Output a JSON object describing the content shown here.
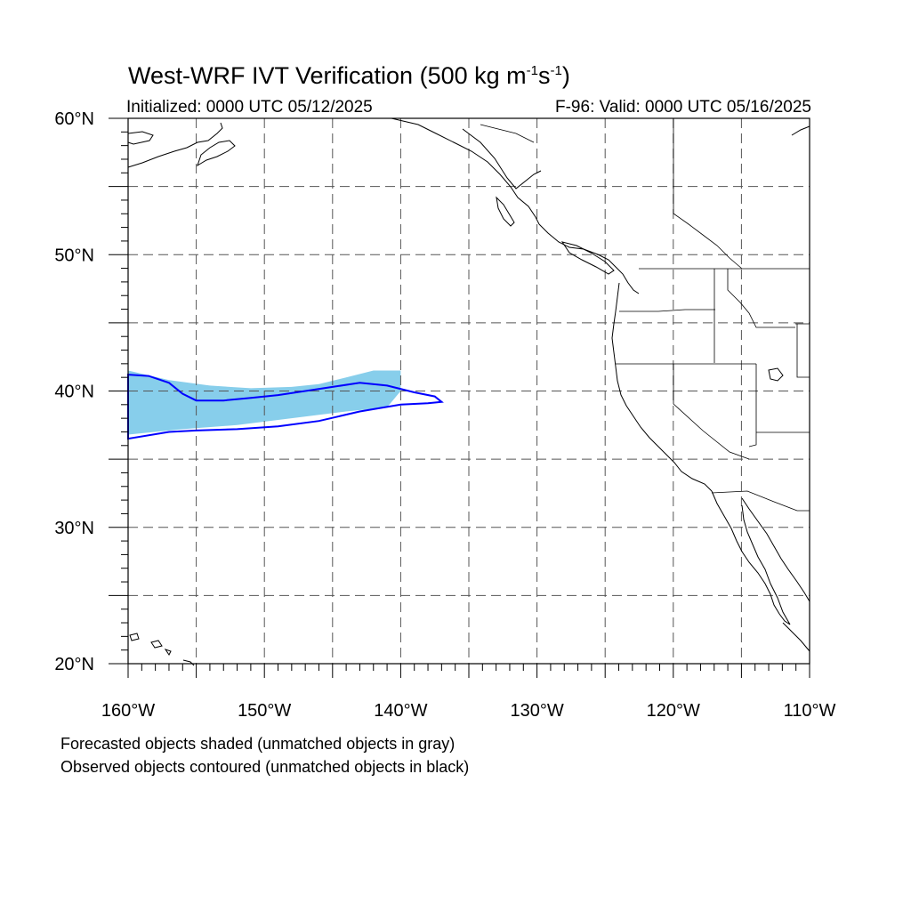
{
  "title": {
    "text": "West-WRF IVT Verification (500 kg m",
    "sup1": "-1",
    "mid": "s",
    "sup2": "-1",
    "end": ")"
  },
  "subtitle_left": "Initialized: 0000 UTC 05/12/2025",
  "subtitle_right": "F-96: Valid: 0000 UTC 05/16/2025",
  "map": {
    "lon_range": [
      -160,
      -110
    ],
    "lat_range": [
      20,
      60
    ],
    "lat_labels": [
      "20°N",
      "30°N",
      "40°N",
      "50°N",
      "60°N"
    ],
    "lon_labels": [
      "160°W",
      "150°W",
      "140°W",
      "130°W",
      "120°W",
      "110°W"
    ],
    "gridlines": "dashed every 5 degrees",
    "forecast_fill_color": "#87ceeb",
    "observed_contour_color": "#0000ff",
    "coastline_color": "#000000",
    "forecast_object": [
      [
        -160,
        41.5
      ],
      [
        -157,
        40.8
      ],
      [
        -154,
        40.4
      ],
      [
        -151,
        40.2
      ],
      [
        -148,
        40.3
      ],
      [
        -146,
        40.5
      ],
      [
        -144,
        41.0
      ],
      [
        -142,
        41.5
      ],
      [
        -140,
        41.5
      ],
      [
        -140,
        40.0
      ],
      [
        -141,
        38.8
      ],
      [
        -144,
        38.5
      ],
      [
        -148,
        38.0
      ],
      [
        -152,
        37.5
      ],
      [
        -156,
        37.2
      ],
      [
        -160,
        36.8
      ]
    ],
    "observed_object": [
      [
        -160,
        41.2
      ],
      [
        -158.5,
        41.1
      ],
      [
        -157,
        40.6
      ],
      [
        -156,
        39.8
      ],
      [
        -155,
        39.3
      ],
      [
        -153,
        39.3
      ],
      [
        -151,
        39.5
      ],
      [
        -149,
        39.7
      ],
      [
        -147,
        40.0
      ],
      [
        -145,
        40.3
      ],
      [
        -143,
        40.6
      ],
      [
        -141,
        40.4
      ],
      [
        -139,
        39.9
      ],
      [
        -137.5,
        39.6
      ],
      [
        -137,
        39.2
      ],
      [
        -138,
        39.1
      ],
      [
        -140,
        39.0
      ],
      [
        -143,
        38.5
      ],
      [
        -146,
        37.8
      ],
      [
        -149,
        37.4
      ],
      [
        -152,
        37.2
      ],
      [
        -155,
        37.1
      ],
      [
        -157,
        37.0
      ],
      [
        -160,
        36.5
      ]
    ]
  },
  "notes": [
    "Forecasted objects shaded (unmatched objects in gray)",
    "Observed objects contoured (unmatched objects in black)"
  ]
}
